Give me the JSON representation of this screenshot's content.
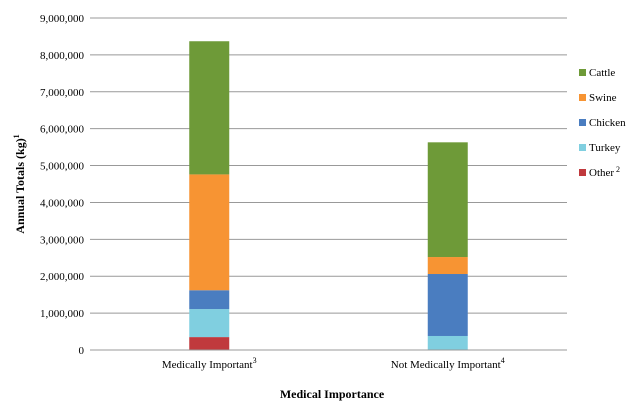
{
  "chart_data": {
    "type": "bar",
    "stacked": true,
    "title": "",
    "xlabel": "Medical Importance",
    "ylabel": "Annual Totals (kg)",
    "ylabel_sup": "1",
    "categories": [
      "Medically Important",
      "Not Medically Important"
    ],
    "category_sups": [
      "3",
      "4"
    ],
    "ylim": [
      0,
      9000000
    ],
    "yticks": [
      "0",
      "1,000,000",
      "2,000,000",
      "3,000,000",
      "4,000,000",
      "5,000,000",
      "6,000,000",
      "7,000,000",
      "8,000,000",
      "9,000,000"
    ],
    "grid": true,
    "legend_position": "right",
    "series": [
      {
        "name": "Other",
        "sup": "2",
        "color": "#c0393d",
        "values": [
          350000,
          0
        ]
      },
      {
        "name": "Turkey",
        "sup": "",
        "color": "#80cfe0",
        "values": [
          760000,
          380000
        ]
      },
      {
        "name": "Chicken",
        "sup": "",
        "color": "#4a7dc0",
        "values": [
          510000,
          1680000
        ]
      },
      {
        "name": "Swine",
        "sup": "",
        "color": "#f79433",
        "values": [
          3140000,
          460000
        ]
      },
      {
        "name": "Cattle",
        "sup": "",
        "color": "#6e9a38",
        "values": [
          3610000,
          3110000
        ]
      }
    ],
    "legend_order": [
      "Cattle",
      "Swine",
      "Chicken",
      "Turkey",
      "Other"
    ]
  }
}
